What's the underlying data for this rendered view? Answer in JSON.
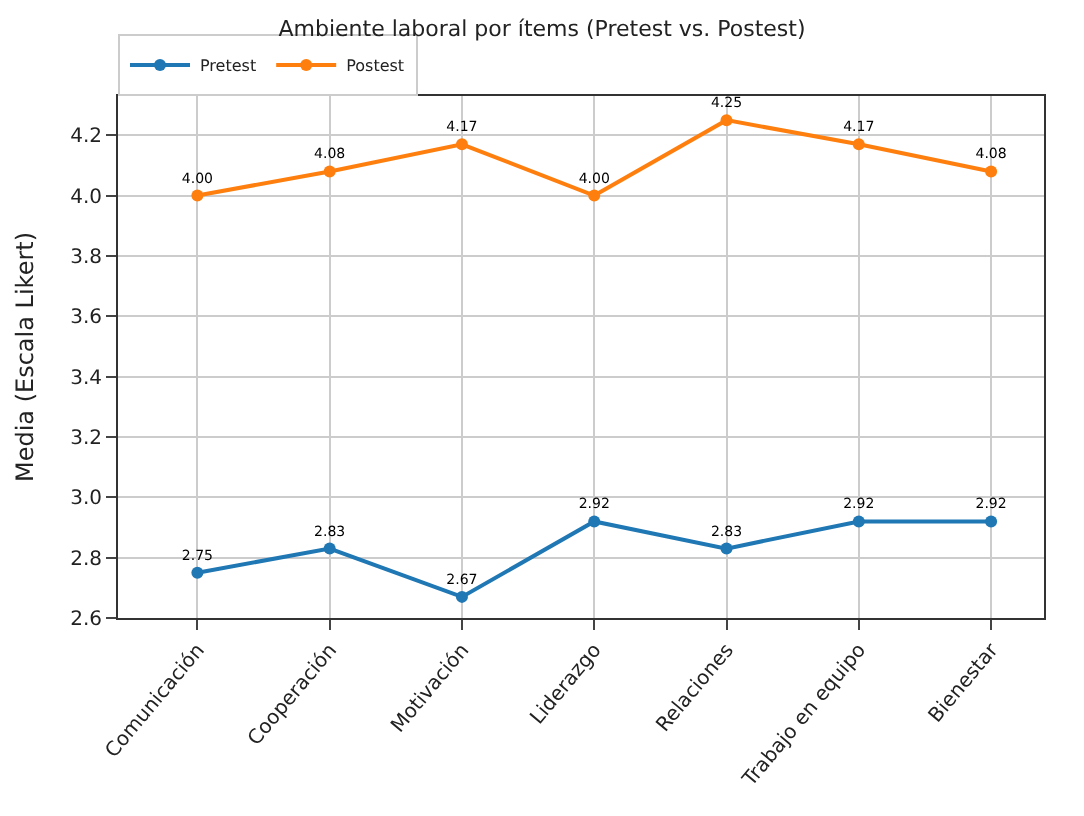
{
  "chart_data": {
    "type": "line",
    "title": "Ambiente laboral por ítems (Pretest vs. Postest)",
    "ylabel": "Media (Escala Likert)",
    "categories": [
      "Comunicación",
      "Cooperación",
      "Motivación",
      "Liderazgo",
      "Relaciones",
      "Trabajo en equipo",
      "Bienestar"
    ],
    "series": [
      {
        "name": "Pretest",
        "color": "#1f77b4",
        "values": [
          2.75,
          2.83,
          2.67,
          2.92,
          2.83,
          2.92,
          2.92
        ],
        "value_labels": [
          "2.75",
          "2.83",
          "2.67",
          "2.92",
          "2.83",
          "2.92",
          "2.92"
        ]
      },
      {
        "name": "Postest",
        "color": "#ff7f0e",
        "values": [
          4.0,
          4.08,
          4.17,
          4.0,
          4.25,
          4.17,
          4.08
        ],
        "value_labels": [
          "4.00",
          "4.08",
          "4.17",
          "4.00",
          "4.25",
          "4.17",
          "4.08"
        ]
      }
    ],
    "ylim": [
      2.6,
      4.33
    ],
    "yticks": [
      2.6,
      2.8,
      {
        "value": 3,
        "label": "3.0"
      },
      3.2,
      3.4,
      3.6,
      3.8,
      {
        "value": 4,
        "label": "4.0"
      },
      4.2
    ],
    "grid": true,
    "legend": "top left",
    "marker": "circle",
    "line_style": "solid"
  }
}
